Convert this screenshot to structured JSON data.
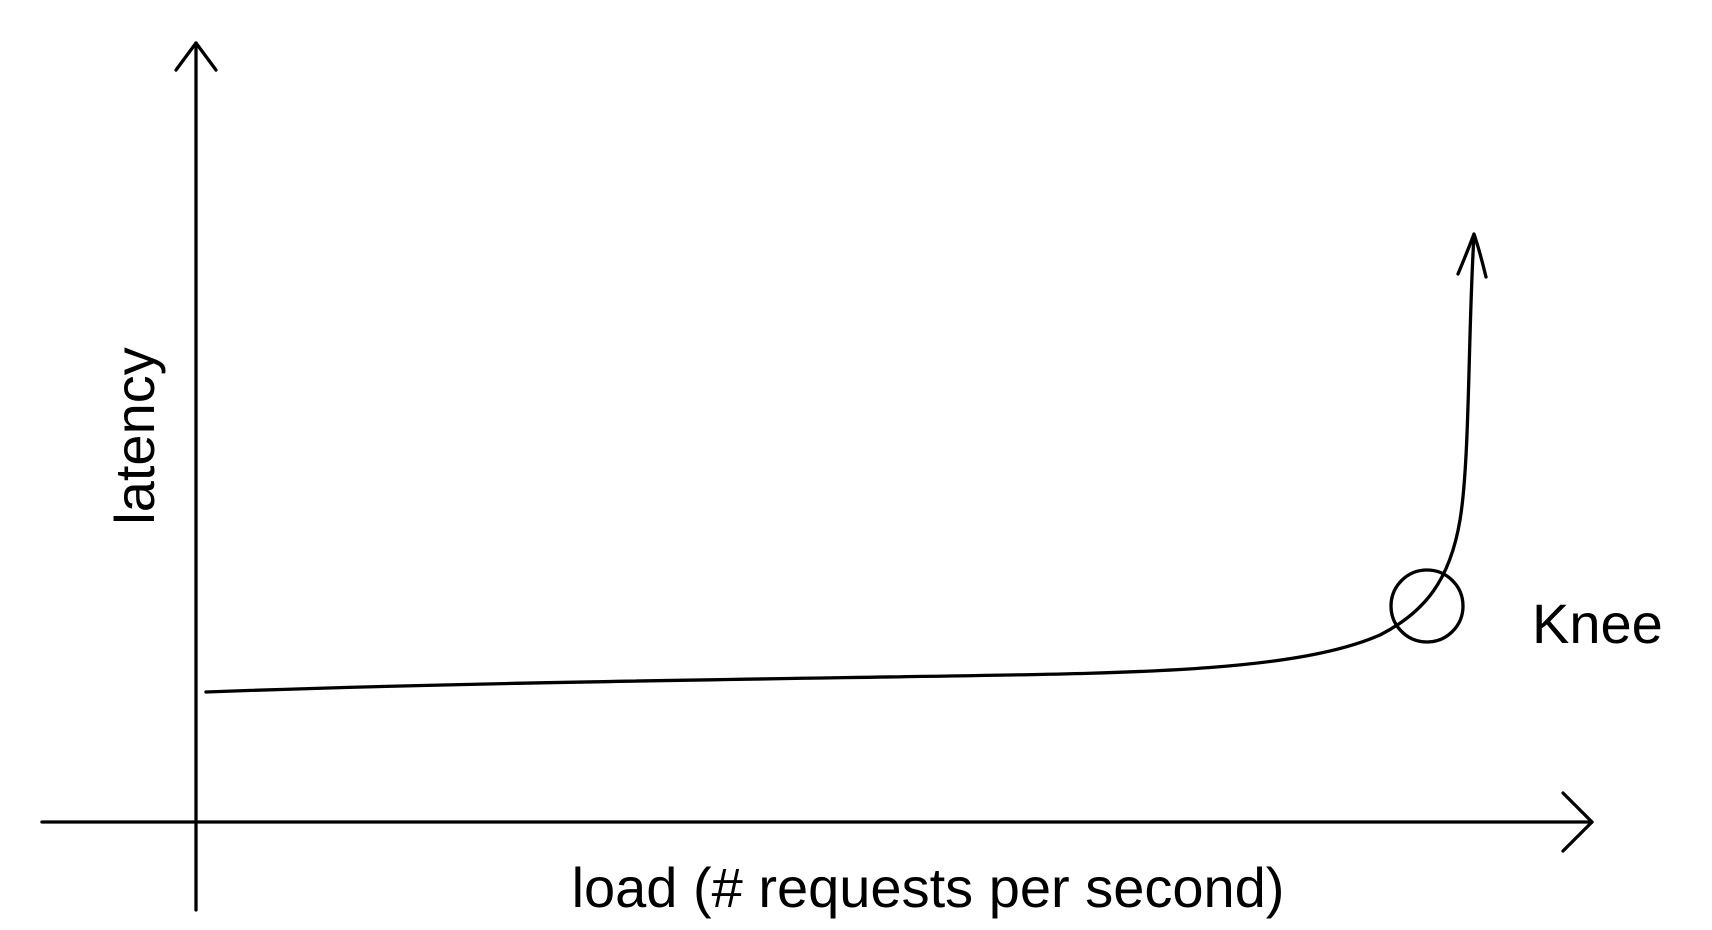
{
  "diagram": {
    "x_axis_label": "load (# requests per second)",
    "y_axis_label": "latency",
    "knee_label": "Knee",
    "line_color": "#000000",
    "background": "#ffffff"
  }
}
